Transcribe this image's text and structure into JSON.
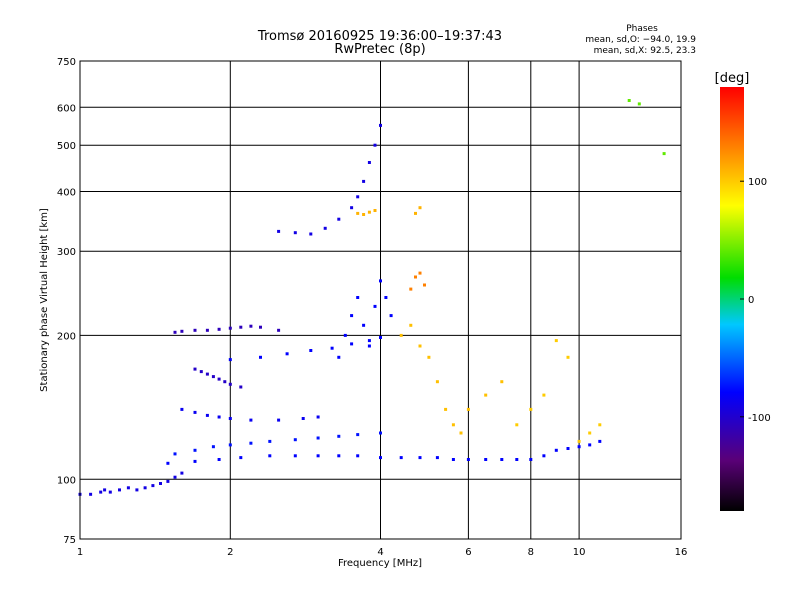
{
  "chart_data": {
    "type": "scatter",
    "title": "Tromsø 20160925 19:36:00–19:37:43",
    "subtitle": "RwPretec (8p)",
    "xlabel": "Frequency [MHz]",
    "ylabel": "Stationary phase Virtual Height [km]",
    "x_scale": "log",
    "y_scale": "log",
    "xlim": [
      1,
      16
    ],
    "ylim": [
      75,
      750
    ],
    "x_ticks": [
      1,
      2,
      4,
      6,
      8,
      10,
      16
    ],
    "y_ticks": [
      75,
      100,
      200,
      300,
      400,
      500,
      600,
      750
    ],
    "grid": true,
    "phase_box": {
      "heading": "Phases",
      "line_o": "mean, sd,O:  −94.0, 19.9",
      "line_x": "mean, sd,X:  92.5, 23.3"
    },
    "colorbar": {
      "label": "[deg]",
      "min": -180,
      "max": 180,
      "ticks": [
        100,
        0,
        -100
      ],
      "colormap": "rainbow: black → purple → blue → cyan → green → yellow → orange → red"
    },
    "series": [
      {
        "values": [
          [
            1.0,
            93
          ],
          [
            1.05,
            93
          ],
          [
            1.1,
            94
          ],
          [
            1.12,
            95
          ],
          [
            1.15,
            94
          ],
          [
            1.2,
            95
          ],
          [
            1.25,
            96
          ],
          [
            1.3,
            95
          ],
          [
            1.35,
            96
          ],
          [
            1.4,
            97
          ],
          [
            1.45,
            98
          ],
          [
            1.5,
            99
          ],
          [
            1.55,
            101
          ],
          [
            1.6,
            103
          ]
        ],
        "phase": -110
      },
      {
        "values": [
          [
            1.5,
            108
          ],
          [
            1.7,
            109
          ],
          [
            1.9,
            110
          ],
          [
            2.1,
            111
          ],
          [
            2.4,
            112
          ],
          [
            2.7,
            112
          ],
          [
            3.0,
            112
          ],
          [
            3.3,
            112
          ],
          [
            3.6,
            112
          ],
          [
            4.0,
            111
          ],
          [
            4.4,
            111
          ],
          [
            4.8,
            111
          ],
          [
            5.2,
            111
          ],
          [
            5.6,
            110
          ],
          [
            6.0,
            110
          ],
          [
            6.5,
            110
          ],
          [
            7.0,
            110
          ],
          [
            7.5,
            110
          ],
          [
            8.0,
            110
          ],
          [
            8.5,
            112
          ],
          [
            9.0,
            115
          ],
          [
            9.5,
            116
          ],
          [
            10.0,
            117
          ],
          [
            10.5,
            118
          ],
          [
            11.0,
            120
          ]
        ],
        "phase": -100
      },
      {
        "values": [
          [
            1.55,
            113
          ],
          [
            1.7,
            115
          ],
          [
            1.85,
            117
          ],
          [
            2.0,
            118
          ],
          [
            2.2,
            119
          ],
          [
            2.4,
            120
          ],
          [
            2.7,
            121
          ],
          [
            3.0,
            122
          ],
          [
            3.3,
            123
          ],
          [
            3.6,
            124
          ],
          [
            4.0,
            125
          ]
        ],
        "phase": -95
      },
      {
        "values": [
          [
            1.55,
            203
          ],
          [
            1.6,
            204
          ],
          [
            1.7,
            205
          ],
          [
            1.8,
            205
          ],
          [
            1.9,
            206
          ],
          [
            2.0,
            207
          ],
          [
            2.1,
            208
          ],
          [
            2.2,
            209
          ],
          [
            2.3,
            208
          ],
          [
            2.5,
            205
          ]
        ],
        "phase": -125
      },
      {
        "values": [
          [
            1.7,
            170
          ],
          [
            1.75,
            168
          ],
          [
            1.8,
            166
          ],
          [
            1.85,
            164
          ],
          [
            1.9,
            162
          ],
          [
            1.95,
            160
          ],
          [
            2.0,
            158
          ],
          [
            2.1,
            156
          ]
        ],
        "phase": -120
      },
      {
        "values": [
          [
            1.6,
            140
          ],
          [
            1.7,
            138
          ],
          [
            1.8,
            136
          ],
          [
            1.9,
            135
          ],
          [
            2.0,
            134
          ],
          [
            2.2,
            133
          ],
          [
            2.5,
            133
          ],
          [
            2.8,
            134
          ],
          [
            3.0,
            135
          ]
        ],
        "phase": -105
      },
      {
        "values": [
          [
            2.0,
            178
          ],
          [
            2.3,
            180
          ],
          [
            2.6,
            183
          ],
          [
            2.9,
            186
          ],
          [
            3.2,
            188
          ],
          [
            3.5,
            192
          ],
          [
            3.8,
            195
          ],
          [
            4.0,
            198
          ]
        ],
        "phase": -100
      },
      {
        "values": [
          [
            2.5,
            330
          ],
          [
            2.7,
            328
          ],
          [
            2.9,
            326
          ],
          [
            3.1,
            335
          ],
          [
            3.3,
            350
          ],
          [
            3.5,
            370
          ],
          [
            3.6,
            390
          ],
          [
            3.7,
            420
          ],
          [
            3.8,
            460
          ],
          [
            3.9,
            500
          ],
          [
            4.0,
            550
          ]
        ],
        "phase": -110
      },
      {
        "values": [
          [
            3.6,
            360
          ],
          [
            3.7,
            358
          ],
          [
            3.8,
            362
          ],
          [
            3.9,
            365
          ],
          [
            4.7,
            360
          ],
          [
            4.8,
            370
          ]
        ],
        "phase": 110
      },
      {
        "values": [
          [
            3.3,
            180
          ],
          [
            3.4,
            200
          ],
          [
            3.5,
            220
          ],
          [
            3.6,
            240
          ],
          [
            3.7,
            210
          ],
          [
            3.8,
            190
          ],
          [
            3.9,
            230
          ],
          [
            4.0,
            260
          ],
          [
            4.1,
            240
          ],
          [
            4.2,
            220
          ]
        ],
        "phase": -100
      },
      {
        "values": [
          [
            4.4,
            200
          ],
          [
            4.6,
            210
          ],
          [
            4.8,
            190
          ],
          [
            5.0,
            180
          ],
          [
            5.2,
            160
          ],
          [
            5.4,
            140
          ],
          [
            5.6,
            130
          ],
          [
            5.8,
            125
          ],
          [
            6.0,
            140
          ],
          [
            6.5,
            150
          ],
          [
            7.0,
            160
          ]
        ],
        "phase": 105
      },
      {
        "values": [
          [
            4.6,
            250
          ],
          [
            4.7,
            265
          ],
          [
            4.8,
            270
          ],
          [
            4.9,
            255
          ]
        ],
        "phase": 130
      },
      {
        "values": [
          [
            7.5,
            130
          ],
          [
            8.0,
            140
          ],
          [
            8.5,
            150
          ],
          [
            9.0,
            195
          ],
          [
            9.5,
            180
          ],
          [
            10.0,
            120
          ],
          [
            10.5,
            125
          ],
          [
            11.0,
            130
          ]
        ],
        "phase": 100
      },
      {
        "values": [
          [
            12.6,
            620
          ],
          [
            13.2,
            610
          ],
          [
            14.8,
            480
          ]
        ],
        "phase": 30
      }
    ]
  }
}
